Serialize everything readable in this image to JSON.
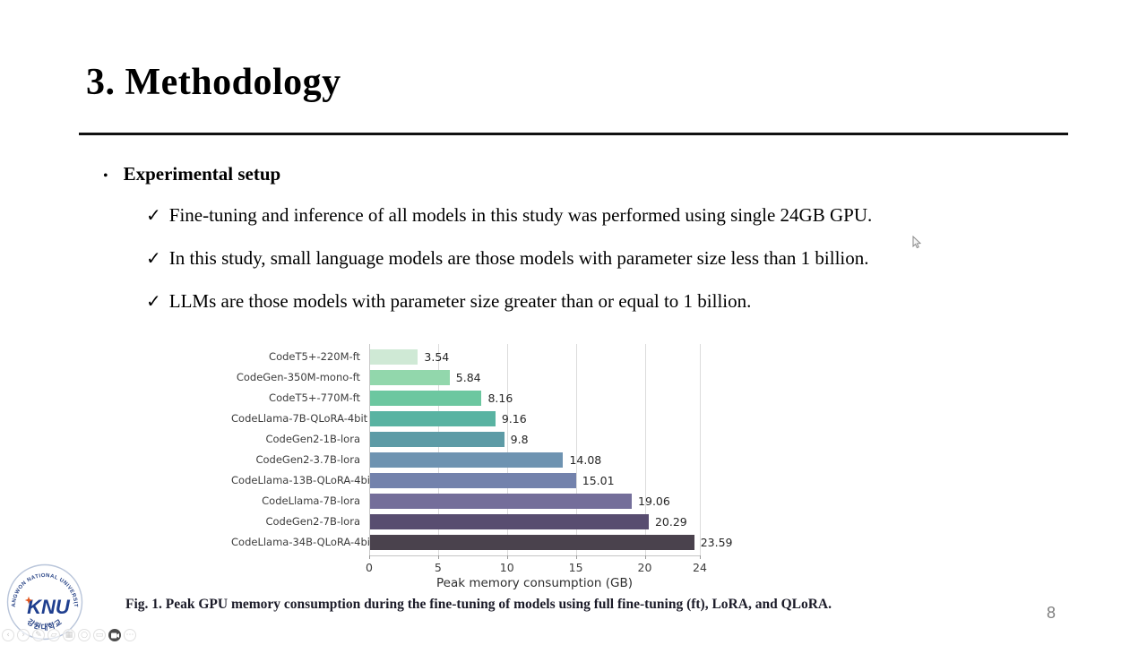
{
  "slide": {
    "title": "3. Methodology",
    "page_number": "8",
    "bullet_glyph": "•",
    "check_glyph": "✓",
    "setup_label": "Experimental setup",
    "check_items": [
      "Fine-tuning and inference of all models in this study was performed using single 24GB GPU.",
      "In this study, small language models are those models with parameter size less than 1 billion.",
      "LLMs are those models with parameter size greater than or equal to 1 billion."
    ],
    "caption": "Fig. 1.  Peak GPU memory consumption during the fine-tuning of models using full fine-tuning (ft), LoRA, and QLoRA."
  },
  "chart_data": {
    "type": "bar",
    "orientation": "horizontal",
    "categories": [
      "CodeT5+-220M-ft",
      "CodeGen-350M-mono-ft",
      "CodeT5+-770M-ft",
      "CodeLlama-7B-QLoRA-4bit",
      "CodeGen2-1B-lora",
      "CodeGen2-3.7B-lora",
      "CodeLlama-13B-QLoRA-4bit",
      "CodeLlama-7B-lora",
      "CodeGen2-7B-lora",
      "CodeLlama-34B-QLoRA-4bit"
    ],
    "values": [
      3.54,
      5.84,
      8.16,
      9.16,
      9.8,
      14.08,
      15.01,
      19.06,
      20.29,
      23.59
    ],
    "value_labels": [
      "3.54",
      "5.84",
      "8.16",
      "9.16",
      "9.8",
      "14.08",
      "15.01",
      "19.06",
      "20.29",
      "23.59"
    ],
    "bar_colors": [
      "#cfe9d5",
      "#92d7ac",
      "#6cc7a0",
      "#59b3a2",
      "#5d9ba6",
      "#6e93b1",
      "#7382ac",
      "#746e9a",
      "#584d70",
      "#4a424d"
    ],
    "title": "",
    "xlabel": "Peak memory consumption (GB)",
    "ylabel": "",
    "xticks": [
      0,
      5,
      10,
      15,
      20,
      24
    ],
    "xlim": [
      0,
      24
    ],
    "grid": true,
    "legend": false
  },
  "logo": {
    "top_arc": "KANGWON NATIONAL UNIVERSITY",
    "bottom_arc": "강원대학교",
    "center": "KNU",
    "separator": "·",
    "text_color": "#2a4587",
    "accent_color": "#e2571f"
  },
  "player_controls": {
    "glyphs": {
      "prev": "‹",
      "next": "›",
      "pen": "✎",
      "highlighter": "▱",
      "all_slides": "▦",
      "zoom": "○",
      "captions": "▭",
      "more": "⋯"
    }
  }
}
